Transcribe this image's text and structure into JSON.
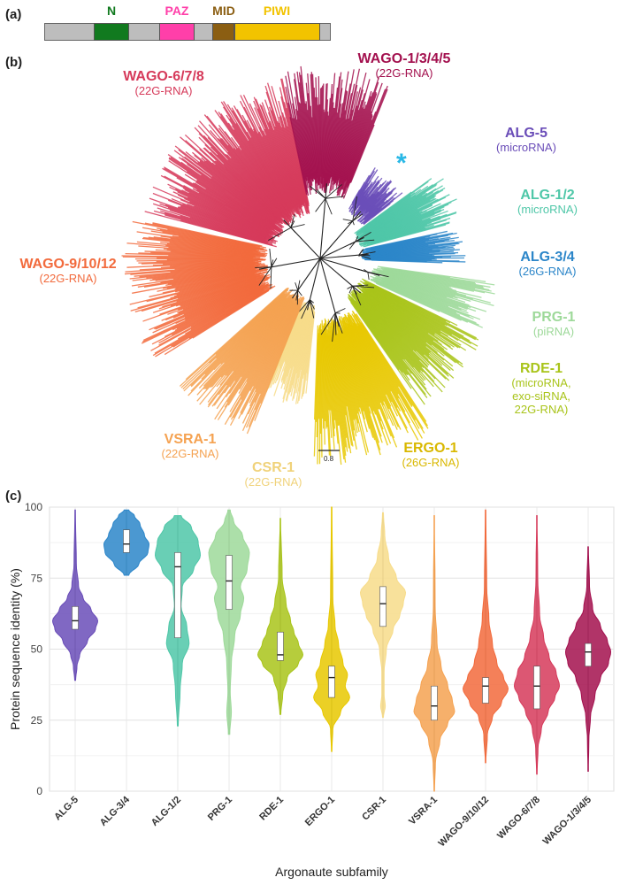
{
  "panels": {
    "a": "(a)",
    "b": "(b)",
    "c": "(c)"
  },
  "domains": [
    {
      "name": "N",
      "color": "#117a1f"
    },
    {
      "name": "PAZ",
      "color": "#ff3fa9"
    },
    {
      "name": "MID",
      "color": "#8b5e12"
    },
    {
      "name": "PIWI",
      "color": "#f2c300"
    }
  ],
  "tree": {
    "asterisk": "*",
    "asterisk_color": "#29b8e6",
    "scale_label": "0.8",
    "clades": [
      {
        "name": "WAGO-6/7/8",
        "sub": "(22G-RNA)",
        "color": "#d63a5a"
      },
      {
        "name": "WAGO-1/3/4/5",
        "sub": "(22G-RNA)",
        "color": "#a3104e"
      },
      {
        "name": "ALG-5",
        "sub": "(microRNA)",
        "color": "#6a4db8"
      },
      {
        "name": "ALG-1/2",
        "sub": "(microRNA)",
        "color": "#4fc7a8"
      },
      {
        "name": "ALG-3/4",
        "sub": "(26G-RNA)",
        "color": "#2c86c9"
      },
      {
        "name": "PRG-1",
        "sub": "(piRNA)",
        "color": "#9ed99a"
      },
      {
        "name": "RDE-1",
        "sub": "(microRNA,\nexo-siRNA,\n22G-RNA)",
        "color": "#a9c41a"
      },
      {
        "name": "ERGO-1",
        "sub": "(26G-RNA)",
        "color": "#e8c800"
      },
      {
        "name": "CSR-1",
        "sub": "(22G-RNA)",
        "color": "#f7dc8a"
      },
      {
        "name": "VSRA-1",
        "sub": "(22G-RNA)",
        "color": "#f5a251"
      },
      {
        "name": "WAGO-9/10/12",
        "sub": "(22G-RNA)",
        "color": "#f26a3c"
      }
    ]
  },
  "chart_data": {
    "type": "violin",
    "xlabel": "Argonaute subfamily",
    "ylabel": "Protein sequence identity (%)",
    "ylim": [
      0,
      100
    ],
    "yticks": [
      0,
      25,
      50,
      75,
      100
    ],
    "categories": [
      "ALG-5",
      "ALG-3/4",
      "ALG-1/2",
      "PRG-1",
      "RDE-1",
      "ERGO-1",
      "CSR-1",
      "VSRA-1",
      "WAGO-9/10/12",
      "WAGO-6/7/8",
      "WAGO-1/3/4/5"
    ],
    "colors": [
      "#6a4db8",
      "#2c86c9",
      "#4fc7a8",
      "#9ed99a",
      "#a9c41a",
      "#e8c800",
      "#f7dc8a",
      "#f5a251",
      "#f26a3c",
      "#d63a5a",
      "#a3104e"
    ],
    "series": [
      {
        "category": "ALG-5",
        "min": 39,
        "max": 99,
        "q1": 57,
        "median": 60,
        "q3": 65,
        "profile": [
          [
            39,
            0.02
          ],
          [
            44,
            0.08
          ],
          [
            48,
            0.2
          ],
          [
            53,
            0.55
          ],
          [
            57,
            0.9
          ],
          [
            60,
            1.0
          ],
          [
            64,
            0.7
          ],
          [
            68,
            0.35
          ],
          [
            72,
            0.15
          ],
          [
            80,
            0.05
          ],
          [
            99,
            0.01
          ]
        ]
      },
      {
        "category": "ALG-3/4",
        "min": 76,
        "max": 99,
        "q1": 84,
        "median": 87,
        "q3": 92,
        "profile": [
          [
            76,
            0.1
          ],
          [
            80,
            0.55
          ],
          [
            84,
            0.95
          ],
          [
            87,
            1.0
          ],
          [
            90,
            0.8
          ],
          [
            94,
            0.6
          ],
          [
            97,
            0.35
          ],
          [
            99,
            0.1
          ]
        ]
      },
      {
        "category": "ALG-1/2",
        "min": 23,
        "max": 97,
        "q1": 54,
        "median": 79,
        "q3": 84,
        "profile": [
          [
            23,
            0.02
          ],
          [
            35,
            0.1
          ],
          [
            45,
            0.2
          ],
          [
            52,
            0.5
          ],
          [
            58,
            0.4
          ],
          [
            65,
            0.15
          ],
          [
            72,
            0.2
          ],
          [
            78,
            0.7
          ],
          [
            83,
            1.0
          ],
          [
            88,
            0.9
          ],
          [
            93,
            0.6
          ],
          [
            97,
            0.15
          ]
        ]
      },
      {
        "category": "PRG-1",
        "min": 20,
        "max": 99,
        "q1": 64,
        "median": 74,
        "q3": 83,
        "profile": [
          [
            20,
            0.03
          ],
          [
            28,
            0.1
          ],
          [
            35,
            0.05
          ],
          [
            45,
            0.1
          ],
          [
            55,
            0.25
          ],
          [
            62,
            0.5
          ],
          [
            68,
            0.65
          ],
          [
            72,
            0.5
          ],
          [
            78,
            0.8
          ],
          [
            84,
            0.9
          ],
          [
            90,
            0.6
          ],
          [
            95,
            0.2
          ],
          [
            99,
            0.05
          ]
        ]
      },
      {
        "category": "RDE-1",
        "min": 27,
        "max": 96,
        "q1": 46,
        "median": 48,
        "q3": 56,
        "profile": [
          [
            27,
            0.02
          ],
          [
            34,
            0.1
          ],
          [
            40,
            0.3
          ],
          [
            45,
            0.8
          ],
          [
            48,
            1.0
          ],
          [
            52,
            0.8
          ],
          [
            56,
            0.6
          ],
          [
            60,
            0.45
          ],
          [
            66,
            0.25
          ],
          [
            75,
            0.08
          ],
          [
            96,
            0.01
          ]
        ]
      },
      {
        "category": "ERGO-1",
        "min": 14,
        "max": 100,
        "q1": 33,
        "median": 40,
        "q3": 44,
        "profile": [
          [
            14,
            0.01
          ],
          [
            22,
            0.05
          ],
          [
            28,
            0.4
          ],
          [
            33,
            0.8
          ],
          [
            37,
            0.6
          ],
          [
            41,
            0.7
          ],
          [
            45,
            0.5
          ],
          [
            52,
            0.3
          ],
          [
            58,
            0.15
          ],
          [
            68,
            0.05
          ],
          [
            100,
            0.01
          ]
        ]
      },
      {
        "category": "CSR-1",
        "min": 26,
        "max": 98,
        "q1": 58,
        "median": 66,
        "q3": 72,
        "profile": [
          [
            26,
            0.02
          ],
          [
            30,
            0.1
          ],
          [
            34,
            0.05
          ],
          [
            42,
            0.05
          ],
          [
            50,
            0.15
          ],
          [
            57,
            0.45
          ],
          [
            62,
            0.75
          ],
          [
            66,
            0.9
          ],
          [
            70,
            1.0
          ],
          [
            75,
            0.6
          ],
          [
            82,
            0.25
          ],
          [
            90,
            0.08
          ],
          [
            98,
            0.02
          ]
        ]
      },
      {
        "category": "VSRA-1",
        "min": 0,
        "max": 97,
        "q1": 25,
        "median": 30,
        "q3": 37,
        "profile": [
          [
            0,
            0.01
          ],
          [
            10,
            0.05
          ],
          [
            18,
            0.25
          ],
          [
            24,
            0.6
          ],
          [
            28,
            0.9
          ],
          [
            32,
            0.8
          ],
          [
            37,
            0.6
          ],
          [
            44,
            0.3
          ],
          [
            52,
            0.12
          ],
          [
            65,
            0.04
          ],
          [
            97,
            0.01
          ]
        ]
      },
      {
        "category": "WAGO-9/10/12",
        "min": 10,
        "max": 99,
        "q1": 31,
        "median": 37,
        "q3": 40,
        "profile": [
          [
            10,
            0.01
          ],
          [
            20,
            0.08
          ],
          [
            26,
            0.3
          ],
          [
            31,
            0.7
          ],
          [
            36,
            1.0
          ],
          [
            40,
            0.8
          ],
          [
            45,
            0.5
          ],
          [
            52,
            0.3
          ],
          [
            60,
            0.15
          ],
          [
            72,
            0.05
          ],
          [
            99,
            0.01
          ]
        ]
      },
      {
        "category": "WAGO-6/7/8",
        "min": 6,
        "max": 97,
        "q1": 29,
        "median": 37,
        "q3": 44,
        "profile": [
          [
            6,
            0.01
          ],
          [
            15,
            0.05
          ],
          [
            22,
            0.2
          ],
          [
            28,
            0.5
          ],
          [
            33,
            0.8
          ],
          [
            37,
            1.0
          ],
          [
            42,
            0.85
          ],
          [
            47,
            0.55
          ],
          [
            54,
            0.3
          ],
          [
            62,
            0.12
          ],
          [
            75,
            0.04
          ],
          [
            97,
            0.01
          ]
        ]
      },
      {
        "category": "WAGO-1/3/4/5",
        "min": 7,
        "max": 86,
        "q1": 44,
        "median": 49,
        "q3": 52,
        "profile": [
          [
            7,
            0.01
          ],
          [
            18,
            0.03
          ],
          [
            26,
            0.1
          ],
          [
            34,
            0.3
          ],
          [
            40,
            0.55
          ],
          [
            45,
            0.9
          ],
          [
            49,
            1.0
          ],
          [
            53,
            0.85
          ],
          [
            58,
            0.55
          ],
          [
            64,
            0.2
          ],
          [
            72,
            0.06
          ],
          [
            86,
            0.01
          ]
        ]
      }
    ]
  }
}
